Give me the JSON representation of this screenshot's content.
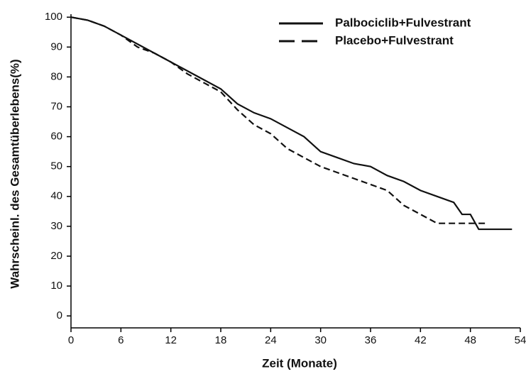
{
  "chart_data": {
    "type": "line",
    "xlabel": "Zeit (Monate)",
    "ylabel": "Wahrscheinl. des Gesamtüberlebens(%)",
    "xlim": [
      0,
      54
    ],
    "xticks": [
      0,
      6,
      12,
      18,
      24,
      30,
      36,
      42,
      48,
      54
    ],
    "ylim": [
      -4,
      101
    ],
    "yticks": [
      0,
      10,
      20,
      30,
      40,
      50,
      60,
      70,
      80,
      90,
      100
    ],
    "legend": "upper right",
    "series": [
      {
        "name": "Palbociclib+Fulvestrant",
        "color": "#111111",
        "dash": "solid",
        "x": [
          0,
          2,
          4,
          6,
          8,
          10,
          12,
          14,
          16,
          18,
          20,
          22,
          24,
          26,
          28,
          30,
          32,
          34,
          36,
          38,
          40,
          42,
          44,
          46,
          47,
          48,
          49,
          53
        ],
        "values": [
          100,
          99,
          97,
          94,
          91,
          88,
          85,
          82,
          79,
          76,
          71,
          68,
          66,
          63,
          60,
          55,
          53,
          51,
          50,
          47,
          45,
          42,
          40,
          38,
          34,
          34,
          29,
          29
        ]
      },
      {
        "name": "Placebo+Fulvestrant",
        "color": "#111111",
        "dash": "dashed",
        "x": [
          0,
          2,
          4,
          6,
          8,
          10,
          12,
          14,
          16,
          18,
          20,
          22,
          24,
          26,
          28,
          30,
          32,
          34,
          36,
          38,
          40,
          42,
          44,
          46,
          48,
          50
        ],
        "values": [
          100,
          99,
          97,
          94,
          90,
          88,
          85,
          81,
          78,
          75,
          69,
          64,
          61,
          56,
          53,
          50,
          48,
          46,
          44,
          42,
          37,
          34,
          31,
          31,
          31,
          31
        ]
      }
    ]
  }
}
